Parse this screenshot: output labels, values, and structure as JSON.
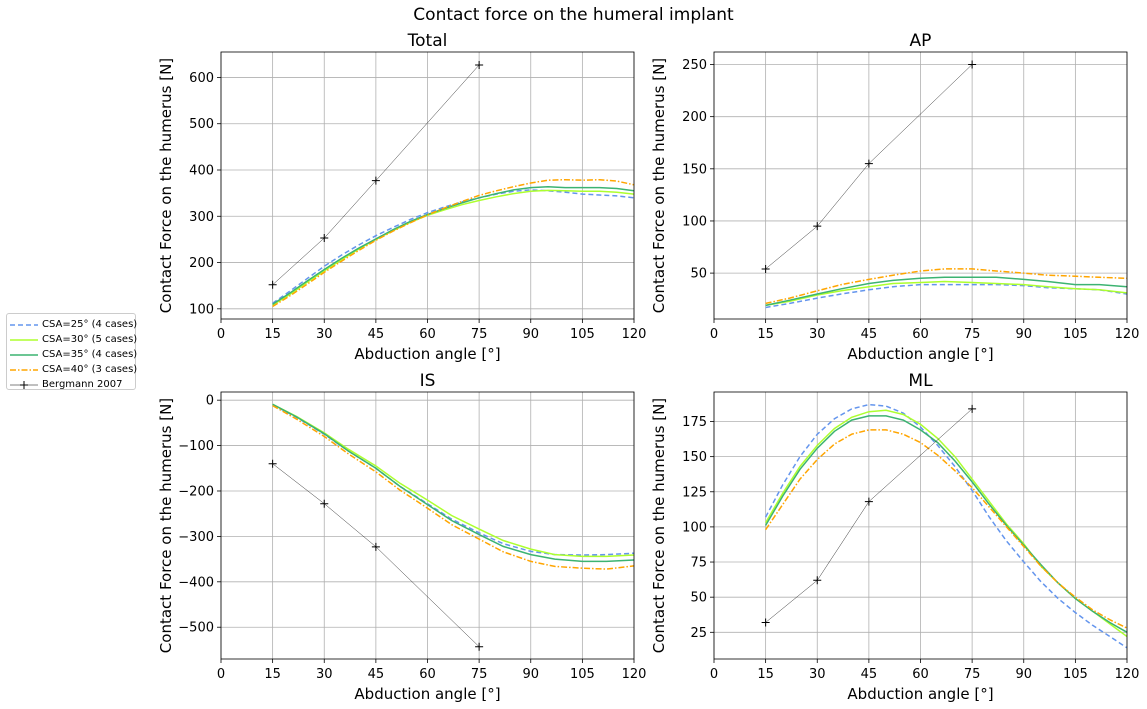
{
  "figure": {
    "suptitle": "Contact force on the humeral implant"
  },
  "legend": {
    "entries": [
      {
        "label": "CSA=25° (4 cases)",
        "color": "#6495ED",
        "style": "dashed"
      },
      {
        "label": "CSA=30° (5 cases)",
        "color": "#ADFF2F",
        "style": "solid"
      },
      {
        "label": "CSA=35° (4 cases)",
        "color": "#3CB371",
        "style": "solid"
      },
      {
        "label": "CSA=40° (3 cases)",
        "color": "#FFA500",
        "style": "dashdot"
      },
      {
        "label": "Bergmann 2007",
        "color": "#000000",
        "style": "marker-plus"
      }
    ]
  },
  "chart_data": [
    {
      "type": "line",
      "title": "Total",
      "xlabel": "Abduction angle [°]",
      "ylabel": "Contact Force on the humerus [N]",
      "xlim": [
        0,
        120
      ],
      "ylim": [
        78,
        655
      ],
      "xticks": [
        0,
        15,
        30,
        45,
        60,
        75,
        90,
        105,
        120
      ],
      "yticks": [
        100,
        200,
        300,
        400,
        500,
        600
      ],
      "grid": true,
      "series": [
        {
          "name": "CSA=25° (4 cases)",
          "x": [
            15,
            20,
            25,
            30,
            35,
            40,
            45,
            50,
            55,
            60,
            65,
            70,
            75,
            80,
            85,
            90,
            95,
            100,
            105,
            110,
            115,
            120
          ],
          "y": [
            112,
            138,
            165,
            192,
            216,
            238,
            258,
            276,
            293,
            308,
            320,
            331,
            340,
            348,
            354,
            357,
            355,
            352,
            348,
            346,
            344,
            340
          ]
        },
        {
          "name": "CSA=30° (5 cases)",
          "x": [
            15,
            20,
            25,
            30,
            35,
            40,
            45,
            50,
            55,
            60,
            65,
            70,
            75,
            80,
            85,
            90,
            95,
            100,
            105,
            110,
            115,
            120
          ],
          "y": [
            108,
            131,
            157,
            182,
            206,
            229,
            250,
            269,
            287,
            302,
            314,
            325,
            334,
            342,
            349,
            354,
            356,
            355,
            354,
            354,
            352,
            348
          ]
        },
        {
          "name": "CSA=35° (4 cases)",
          "x": [
            15,
            20,
            25,
            30,
            35,
            40,
            45,
            50,
            55,
            60,
            65,
            70,
            75,
            80,
            85,
            90,
            95,
            100,
            105,
            110,
            115,
            120
          ],
          "y": [
            110,
            134,
            160,
            185,
            209,
            231,
            251,
            271,
            289,
            304,
            317,
            329,
            340,
            349,
            357,
            362,
            364,
            362,
            362,
            362,
            360,
            355
          ]
        },
        {
          "name": "CSA=40° (3 cases)",
          "x": [
            15,
            20,
            25,
            30,
            35,
            40,
            45,
            50,
            55,
            60,
            65,
            70,
            75,
            80,
            85,
            90,
            95,
            100,
            105,
            110,
            115,
            120
          ],
          "y": [
            105,
            128,
            153,
            179,
            203,
            226,
            248,
            268,
            286,
            303,
            318,
            332,
            345,
            355,
            364,
            372,
            378,
            379,
            378,
            379,
            376,
            368
          ]
        },
        {
          "name": "Bergmann 2007",
          "x": [
            15,
            30,
            45,
            75
          ],
          "y": [
            152,
            253,
            377,
            627
          ]
        }
      ]
    },
    {
      "type": "line",
      "title": "AP",
      "xlabel": "Abduction angle [°]",
      "ylabel": "Contact Force on the humerus [N]",
      "xlim": [
        0,
        120
      ],
      "ylim": [
        6,
        262
      ],
      "xticks": [
        0,
        15,
        30,
        45,
        60,
        75,
        90,
        105,
        120
      ],
      "yticks": [
        50,
        100,
        150,
        200,
        250
      ],
      "grid": true,
      "series": [
        {
          "name": "CSA=25° (4 cases)",
          "x": [
            15,
            22,
            30,
            37,
            45,
            52,
            60,
            67,
            75,
            82,
            90,
            97,
            105,
            112,
            120
          ],
          "y": [
            17,
            21,
            26,
            30,
            34,
            37,
            39,
            39,
            39,
            39,
            38,
            36,
            35,
            34,
            30
          ]
        },
        {
          "name": "CSA=30° (5 cases)",
          "x": [
            15,
            22,
            30,
            37,
            45,
            52,
            60,
            67,
            75,
            82,
            90,
            97,
            105,
            112,
            120
          ],
          "y": [
            19,
            23,
            29,
            33,
            37,
            40,
            41,
            42,
            41,
            40,
            39,
            37,
            35,
            34,
            31
          ]
        },
        {
          "name": "CSA=35° (4 cases)",
          "x": [
            15,
            22,
            30,
            37,
            45,
            52,
            60,
            67,
            75,
            82,
            90,
            97,
            105,
            112,
            120
          ],
          "y": [
            19,
            24,
            30,
            35,
            40,
            43,
            45,
            46,
            46,
            46,
            44,
            42,
            39,
            39,
            37
          ]
        },
        {
          "name": "CSA=40° (3 cases)",
          "x": [
            15,
            22,
            30,
            37,
            45,
            52,
            60,
            67,
            75,
            82,
            90,
            97,
            105,
            112,
            120
          ],
          "y": [
            21,
            26,
            33,
            39,
            44,
            48,
            52,
            54,
            54,
            52,
            50,
            48,
            47,
            46,
            45
          ]
        },
        {
          "name": "Bergmann 2007",
          "x": [
            15,
            30,
            45,
            75
          ],
          "y": [
            54,
            95,
            155,
            250
          ]
        }
      ]
    },
    {
      "type": "line",
      "title": "IS",
      "xlabel": "Abduction angle [°]",
      "ylabel": "Contact Force on the humerus [N]",
      "xlim": [
        0,
        120
      ],
      "ylim": [
        -570,
        18
      ],
      "xticks": [
        0,
        15,
        30,
        45,
        60,
        75,
        90,
        105,
        120
      ],
      "yticks": [
        0,
        -100,
        -200,
        -300,
        -400,
        -500
      ],
      "grid": true,
      "series": [
        {
          "name": "CSA=25° (4 cases)",
          "x": [
            15,
            22,
            30,
            37,
            45,
            52,
            60,
            67,
            75,
            82,
            90,
            97,
            105,
            112,
            120
          ],
          "y": [
            -10,
            -38,
            -75,
            -112,
            -150,
            -190,
            -228,
            -262,
            -292,
            -316,
            -333,
            -340,
            -341,
            -340,
            -337
          ]
        },
        {
          "name": "CSA=30° (5 cases)",
          "x": [
            15,
            22,
            30,
            37,
            45,
            52,
            60,
            67,
            75,
            82,
            90,
            97,
            105,
            112,
            120
          ],
          "y": [
            -9,
            -36,
            -72,
            -108,
            -145,
            -183,
            -220,
            -254,
            -284,
            -309,
            -328,
            -340,
            -344,
            -344,
            -341
          ]
        },
        {
          "name": "CSA=35° (4 cases)",
          "x": [
            15,
            22,
            30,
            37,
            45,
            52,
            60,
            67,
            75,
            82,
            90,
            97,
            105,
            112,
            120
          ],
          "y": [
            -9,
            -37,
            -74,
            -112,
            -150,
            -190,
            -230,
            -265,
            -296,
            -322,
            -340,
            -350,
            -355,
            -355,
            -352
          ]
        },
        {
          "name": "CSA=40° (3 cases)",
          "x": [
            15,
            22,
            30,
            37,
            45,
            52,
            60,
            67,
            75,
            82,
            90,
            97,
            105,
            112,
            120
          ],
          "y": [
            -12,
            -42,
            -80,
            -118,
            -158,
            -198,
            -238,
            -274,
            -306,
            -334,
            -355,
            -366,
            -370,
            -372,
            -365
          ]
        },
        {
          "name": "Bergmann 2007",
          "x": [
            15,
            30,
            45,
            75
          ],
          "y": [
            -140,
            -228,
            -323,
            -543
          ]
        }
      ]
    },
    {
      "type": "line",
      "title": "ML",
      "xlabel": "Abduction angle [°]",
      "ylabel": "Contact Force on the humerus [N]",
      "xlim": [
        0,
        120
      ],
      "ylim": [
        6,
        196
      ],
      "xticks": [
        0,
        15,
        30,
        45,
        60,
        75,
        90,
        105,
        120
      ],
      "yticks": [
        25,
        50,
        75,
        100,
        125,
        150,
        175
      ],
      "grid": true,
      "series": [
        {
          "name": "CSA=25° (4 cases)",
          "x": [
            15,
            20,
            25,
            30,
            35,
            40,
            45,
            50,
            55,
            60,
            65,
            70,
            75,
            80,
            85,
            90,
            95,
            100,
            105,
            110,
            115,
            120
          ],
          "y": [
            107,
            130,
            150,
            166,
            177,
            184,
            187,
            186,
            181,
            171,
            158,
            143,
            126,
            107,
            90,
            75,
            61,
            49,
            39,
            30,
            22,
            14
          ]
        },
        {
          "name": "CSA=30° (5 cases)",
          "x": [
            15,
            20,
            25,
            30,
            35,
            40,
            45,
            50,
            55,
            60,
            65,
            70,
            75,
            80,
            85,
            90,
            95,
            100,
            105,
            110,
            115,
            120
          ],
          "y": [
            103,
            124,
            143,
            158,
            170,
            178,
            182,
            183,
            180,
            173,
            163,
            150,
            134,
            118,
            102,
            88,
            72,
            60,
            49,
            40,
            31,
            22
          ]
        },
        {
          "name": "CSA=35° (4 cases)",
          "x": [
            15,
            20,
            25,
            30,
            35,
            40,
            45,
            50,
            55,
            60,
            65,
            70,
            75,
            80,
            85,
            90,
            95,
            100,
            105,
            110,
            115,
            120
          ],
          "y": [
            101,
            122,
            141,
            156,
            168,
            176,
            179,
            179,
            176,
            169,
            160,
            147,
            132,
            116,
            101,
            87,
            73,
            60,
            49,
            40,
            32,
            25
          ]
        },
        {
          "name": "CSA=40° (3 cases)",
          "x": [
            15,
            20,
            25,
            30,
            35,
            40,
            45,
            50,
            55,
            60,
            65,
            70,
            75,
            80,
            85,
            90,
            95,
            100,
            105,
            110,
            115,
            120
          ],
          "y": [
            98,
            116,
            134,
            148,
            159,
            166,
            169,
            169,
            166,
            160,
            151,
            140,
            128,
            114,
            100,
            86,
            72,
            60,
            50,
            41,
            34,
            28
          ]
        },
        {
          "name": "Bergmann 2007",
          "x": [
            15,
            30,
            45,
            75
          ],
          "y": [
            32,
            62,
            118,
            184
          ]
        }
      ]
    }
  ]
}
